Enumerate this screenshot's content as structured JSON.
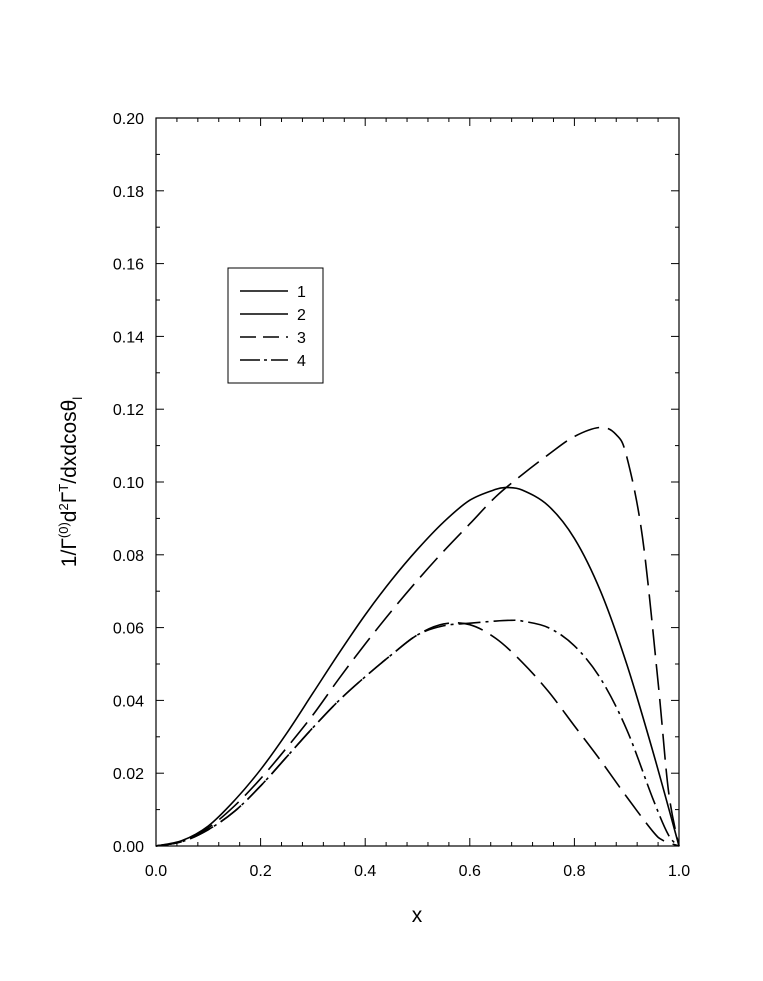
{
  "chart_data": {
    "type": "line",
    "title": "",
    "xlabel": "x",
    "ylabel_parts": {
      "prefix": "1/Γ",
      "sup1": "(0)",
      "mid1": "d",
      "sup2": "2",
      "mid2": "Γ",
      "sup3": "T",
      "mid3": "/dxdcosθ",
      "sub": "l"
    },
    "xlim": [
      0.0,
      1.0
    ],
    "ylim": [
      0.0,
      0.2
    ],
    "xticks": [
      "0.0",
      "0.2",
      "0.4",
      "0.6",
      "0.8",
      "1.0"
    ],
    "yticks": [
      "0.00",
      "0.02",
      "0.04",
      "0.06",
      "0.08",
      "0.10",
      "0.12",
      "0.14",
      "0.16",
      "0.18",
      "0.20"
    ],
    "grid": false,
    "legend_position": "upper-left",
    "series": [
      {
        "name": "1",
        "dash": "solid",
        "x": [
          0.0,
          0.05,
          0.1,
          0.15,
          0.2,
          0.25,
          0.3,
          0.35,
          0.4,
          0.45,
          0.5,
          0.55,
          0.6,
          0.65,
          0.67
        ],
        "y": [
          0.0,
          0.0015,
          0.0055,
          0.0125,
          0.021,
          0.031,
          0.042,
          0.053,
          0.0635,
          0.073,
          0.0815,
          0.089,
          0.095,
          0.098,
          0.0985
        ]
      },
      {
        "name": "2",
        "dash": "solid",
        "x": [
          0.67,
          0.7,
          0.75,
          0.8,
          0.85,
          0.9,
          0.95,
          1.0
        ],
        "y": [
          0.0985,
          0.0978,
          0.0935,
          0.0845,
          0.07,
          0.05,
          0.026,
          0.0
        ]
      },
      {
        "name": "3",
        "dash": "dash",
        "x": [
          0.0,
          0.05,
          0.1,
          0.15,
          0.2,
          0.25,
          0.3,
          0.35,
          0.4,
          0.45,
          0.5,
          0.55,
          0.6,
          0.65,
          0.7,
          0.75,
          0.8,
          0.85,
          0.88,
          0.9,
          0.93,
          0.96,
          0.98,
          1.0
        ],
        "y": [
          0.0,
          0.0013,
          0.005,
          0.011,
          0.0185,
          0.027,
          0.036,
          0.046,
          0.0555,
          0.0645,
          0.073,
          0.081,
          0.0885,
          0.096,
          0.102,
          0.1075,
          0.1125,
          0.115,
          0.113,
          0.107,
          0.085,
          0.045,
          0.015,
          0.0
        ]
      },
      {
        "name": "3",
        "dash": "dash",
        "x": [
          0.0,
          0.05,
          0.1,
          0.15,
          0.2,
          0.25,
          0.3,
          0.35,
          0.4,
          0.45,
          0.5,
          0.55,
          0.6,
          0.65,
          0.7,
          0.75,
          0.8,
          0.85,
          0.9,
          0.95,
          0.97,
          1.0
        ],
        "y": [
          0.0,
          0.0012,
          0.0045,
          0.0095,
          0.0165,
          0.0245,
          0.0325,
          0.04,
          0.0465,
          0.0525,
          0.058,
          0.061,
          0.0608,
          0.057,
          0.0505,
          0.0425,
          0.033,
          0.0235,
          0.0135,
          0.004,
          0.0015,
          0.0
        ]
      },
      {
        "name": "4",
        "dash": "dashdot",
        "x": [
          0.0,
          0.05,
          0.1,
          0.15,
          0.2,
          0.25,
          0.3,
          0.35,
          0.4,
          0.45,
          0.5,
          0.55,
          0.6,
          0.65,
          0.68,
          0.7,
          0.75,
          0.8,
          0.85,
          0.9,
          0.95,
          0.98,
          1.0
        ],
        "y": [
          0.0,
          0.0012,
          0.0045,
          0.0095,
          0.0165,
          0.0245,
          0.0325,
          0.04,
          0.0465,
          0.0525,
          0.058,
          0.0605,
          0.0612,
          0.0618,
          0.062,
          0.0618,
          0.06,
          0.055,
          0.046,
          0.032,
          0.013,
          0.003,
          0.0
        ]
      }
    ]
  }
}
